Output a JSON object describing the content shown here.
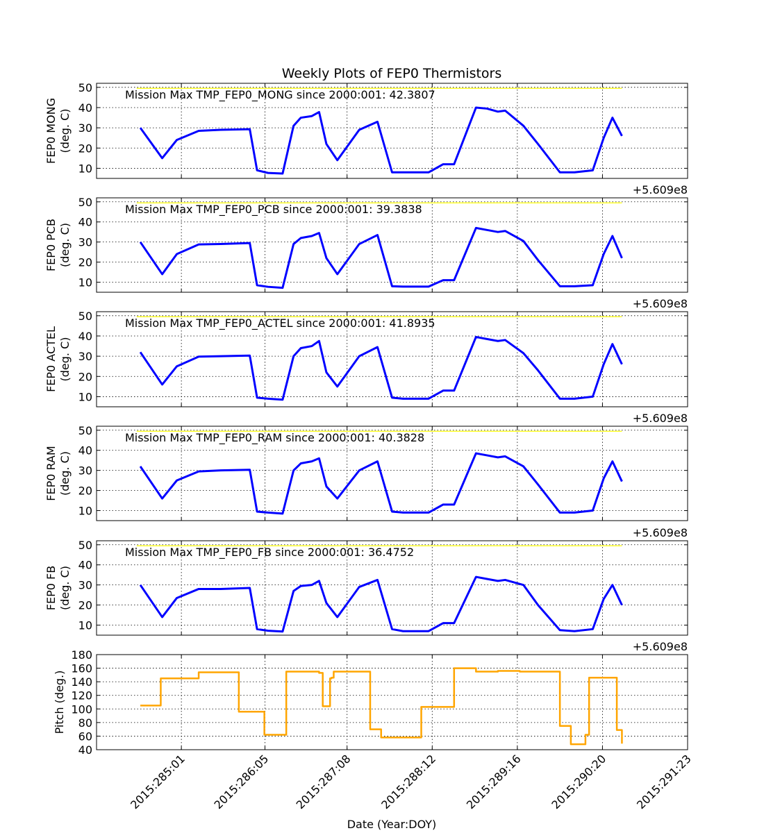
{
  "title": "Weekly Plots of FEP0 Thermistors",
  "xlabel": "Date (Year:DOY)",
  "offset_label": "+5.609e8",
  "colors": {
    "temperature": "#0000ff",
    "pitch": "#ffa500",
    "mission_max": "#ffff00",
    "grid": "#000000"
  },
  "chart_data": [
    {
      "type": "line",
      "ylabel": "FEP0 MONG",
      "unit": "(deg. C)",
      "annotation": "Mission Max TMP_FEP0_MONG since 2000:001: 42.3807",
      "mission_max_line": 49.5,
      "ylim": [
        5,
        52
      ],
      "yticks": [
        10,
        20,
        30,
        40,
        50
      ],
      "x_days": [
        284.5,
        284.8,
        285.0,
        285.3,
        285.6,
        286.0,
        286.1,
        286.25,
        286.45,
        286.6,
        286.7,
        286.85,
        286.95,
        287.05,
        287.2,
        287.5,
        287.75,
        287.95,
        288.1,
        288.45,
        288.65,
        288.8,
        289.1,
        289.25,
        289.4,
        289.5,
        289.75,
        289.95,
        290.25,
        290.45,
        290.7,
        290.85,
        290.97,
        291.1
      ],
      "y": [
        30,
        15,
        24,
        28.5,
        29,
        29.3,
        9,
        7.7,
        7.4,
        31,
        35,
        35.8,
        37.8,
        22,
        14,
        29,
        33,
        8,
        8,
        8,
        12,
        12,
        40,
        39.5,
        38,
        38.5,
        31,
        22,
        8,
        8,
        9,
        25,
        35,
        26
      ]
    },
    {
      "type": "line",
      "ylabel": "FEP0 PCB",
      "unit": "(deg. C)",
      "annotation": "Mission Max TMP_FEP0_PCB since 2000:001: 39.3838",
      "mission_max_line": 49.5,
      "ylim": [
        5,
        52
      ],
      "yticks": [
        10,
        20,
        30,
        40,
        50
      ],
      "x_days": [
        284.5,
        284.8,
        285.0,
        285.3,
        285.6,
        286.0,
        286.1,
        286.25,
        286.45,
        286.6,
        286.7,
        286.85,
        286.95,
        287.05,
        287.2,
        287.5,
        287.75,
        287.95,
        288.1,
        288.45,
        288.65,
        288.8,
        289.1,
        289.25,
        289.4,
        289.5,
        289.75,
        289.95,
        290.25,
        290.45,
        290.7,
        290.85,
        290.97,
        291.1
      ],
      "y": [
        30,
        14,
        24,
        28.8,
        29,
        29.5,
        8.5,
        7.7,
        7.2,
        29,
        32,
        33,
        34.5,
        22,
        14,
        29,
        33.5,
        8,
        7.8,
        7.8,
        11,
        11,
        37,
        36,
        35,
        35.5,
        30.5,
        21,
        8,
        8,
        8.5,
        24,
        33,
        22
      ]
    },
    {
      "type": "line",
      "ylabel": "FEP0 ACTEL",
      "unit": "(deg. C)",
      "annotation": "Mission Max TMP_FEP0_ACTEL since 2000:001: 41.8935",
      "mission_max_line": 49.5,
      "ylim": [
        5,
        52
      ],
      "yticks": [
        10,
        20,
        30,
        40,
        50
      ],
      "x_days": [
        284.5,
        284.8,
        285.0,
        285.3,
        285.6,
        286.0,
        286.1,
        286.25,
        286.45,
        286.6,
        286.7,
        286.85,
        286.95,
        287.05,
        287.2,
        287.5,
        287.75,
        287.95,
        288.1,
        288.45,
        288.65,
        288.8,
        289.1,
        289.25,
        289.4,
        289.5,
        289.75,
        289.95,
        290.25,
        290.45,
        290.7,
        290.85,
        290.97,
        291.1
      ],
      "y": [
        32,
        16,
        25,
        29.8,
        30,
        30.3,
        9.5,
        9,
        8.5,
        30,
        34,
        35,
        37.5,
        22,
        15,
        30,
        34.5,
        9.5,
        9,
        9,
        13,
        13,
        39.5,
        38.5,
        37.5,
        38,
        31.5,
        23,
        9,
        9,
        10,
        26,
        36,
        26
      ]
    },
    {
      "type": "line",
      "ylabel": "FEP0 RAM",
      "unit": "(deg. C)",
      "annotation": "Mission Max TMP_FEP0_RAM since 2000:001: 40.3828",
      "mission_max_line": 49.5,
      "ylim": [
        5,
        52
      ],
      "yticks": [
        10,
        20,
        30,
        40,
        50
      ],
      "x_days": [
        284.5,
        284.8,
        285.0,
        285.3,
        285.6,
        286.0,
        286.1,
        286.25,
        286.45,
        286.6,
        286.7,
        286.85,
        286.95,
        287.05,
        287.2,
        287.5,
        287.75,
        287.95,
        288.1,
        288.45,
        288.65,
        288.8,
        289.1,
        289.25,
        289.4,
        289.5,
        289.75,
        289.95,
        290.25,
        290.45,
        290.7,
        290.85,
        290.97,
        291.1
      ],
      "y": [
        32,
        16,
        25,
        29.5,
        30,
        30.3,
        9.5,
        9,
        8.5,
        30,
        33.5,
        34.5,
        36,
        22,
        16,
        30,
        34.5,
        9.5,
        9,
        9,
        13,
        13,
        38.5,
        37.5,
        36.5,
        37,
        32,
        23,
        9,
        9,
        10,
        26,
        34.5,
        24.5
      ]
    },
    {
      "type": "line",
      "ylabel": "FEP0 FB",
      "unit": "(deg. C)",
      "annotation": "Mission Max TMP_FEP0_FB since 2000:001: 36.4752",
      "mission_max_line": 49.5,
      "ylim": [
        5,
        52
      ],
      "yticks": [
        10,
        20,
        30,
        40,
        50
      ],
      "x_days": [
        284.5,
        284.8,
        285.0,
        285.3,
        285.6,
        286.0,
        286.1,
        286.25,
        286.45,
        286.6,
        286.7,
        286.85,
        286.95,
        287.05,
        287.2,
        287.5,
        287.75,
        287.95,
        288.1,
        288.45,
        288.65,
        288.8,
        289.1,
        289.25,
        289.4,
        289.5,
        289.75,
        289.95,
        290.25,
        290.45,
        290.7,
        290.85,
        290.97,
        291.1
      ],
      "y": [
        30,
        14,
        23.5,
        28,
        28,
        28.5,
        8,
        7.2,
        6.8,
        27,
        29.5,
        30,
        32,
        21,
        14,
        29,
        32.5,
        8,
        7,
        7,
        11,
        11,
        34,
        33,
        32,
        32.5,
        30,
        20,
        7.5,
        7,
        8,
        23,
        30,
        20
      ]
    },
    {
      "type": "line",
      "ylabel": "Pitch (deg.)",
      "ylim": [
        40,
        180
      ],
      "yticks": [
        40,
        60,
        80,
        100,
        120,
        140,
        160,
        180
      ],
      "step": true,
      "x_days": [
        284.5,
        284.78,
        285.3,
        285.85,
        286.2,
        286.5,
        286.95,
        287.0,
        287.05,
        287.1,
        287.12,
        287.15,
        287.55,
        287.65,
        287.8,
        288.15,
        288.35,
        288.6,
        288.8,
        289.1,
        289.4,
        289.7,
        290.25,
        290.4,
        290.6,
        290.65,
        290.96,
        291.03,
        291.1
      ],
      "y": [
        105,
        145,
        154,
        96,
        62,
        155,
        153,
        104,
        104,
        145,
        146,
        155,
        155,
        70,
        58,
        58,
        103,
        103,
        160,
        155,
        156,
        155,
        75,
        48,
        62,
        146,
        146,
        69,
        49
      ]
    }
  ],
  "xticks": [
    {
      "day": 285.0625,
      "label": "2015:285:01"
    },
    {
      "day": 286.2083,
      "label": "2015:286:05"
    },
    {
      "day": 287.3333,
      "label": "2015:287:08"
    },
    {
      "day": 288.5,
      "label": "2015:288:12"
    },
    {
      "day": 289.6667,
      "label": "2015:289:16"
    },
    {
      "day": 290.8333,
      "label": "2015:290:20"
    },
    {
      "day": 292.0,
      "label": "2015:291:23"
    }
  ],
  "xlim_days": [
    283.9,
    292.0
  ]
}
